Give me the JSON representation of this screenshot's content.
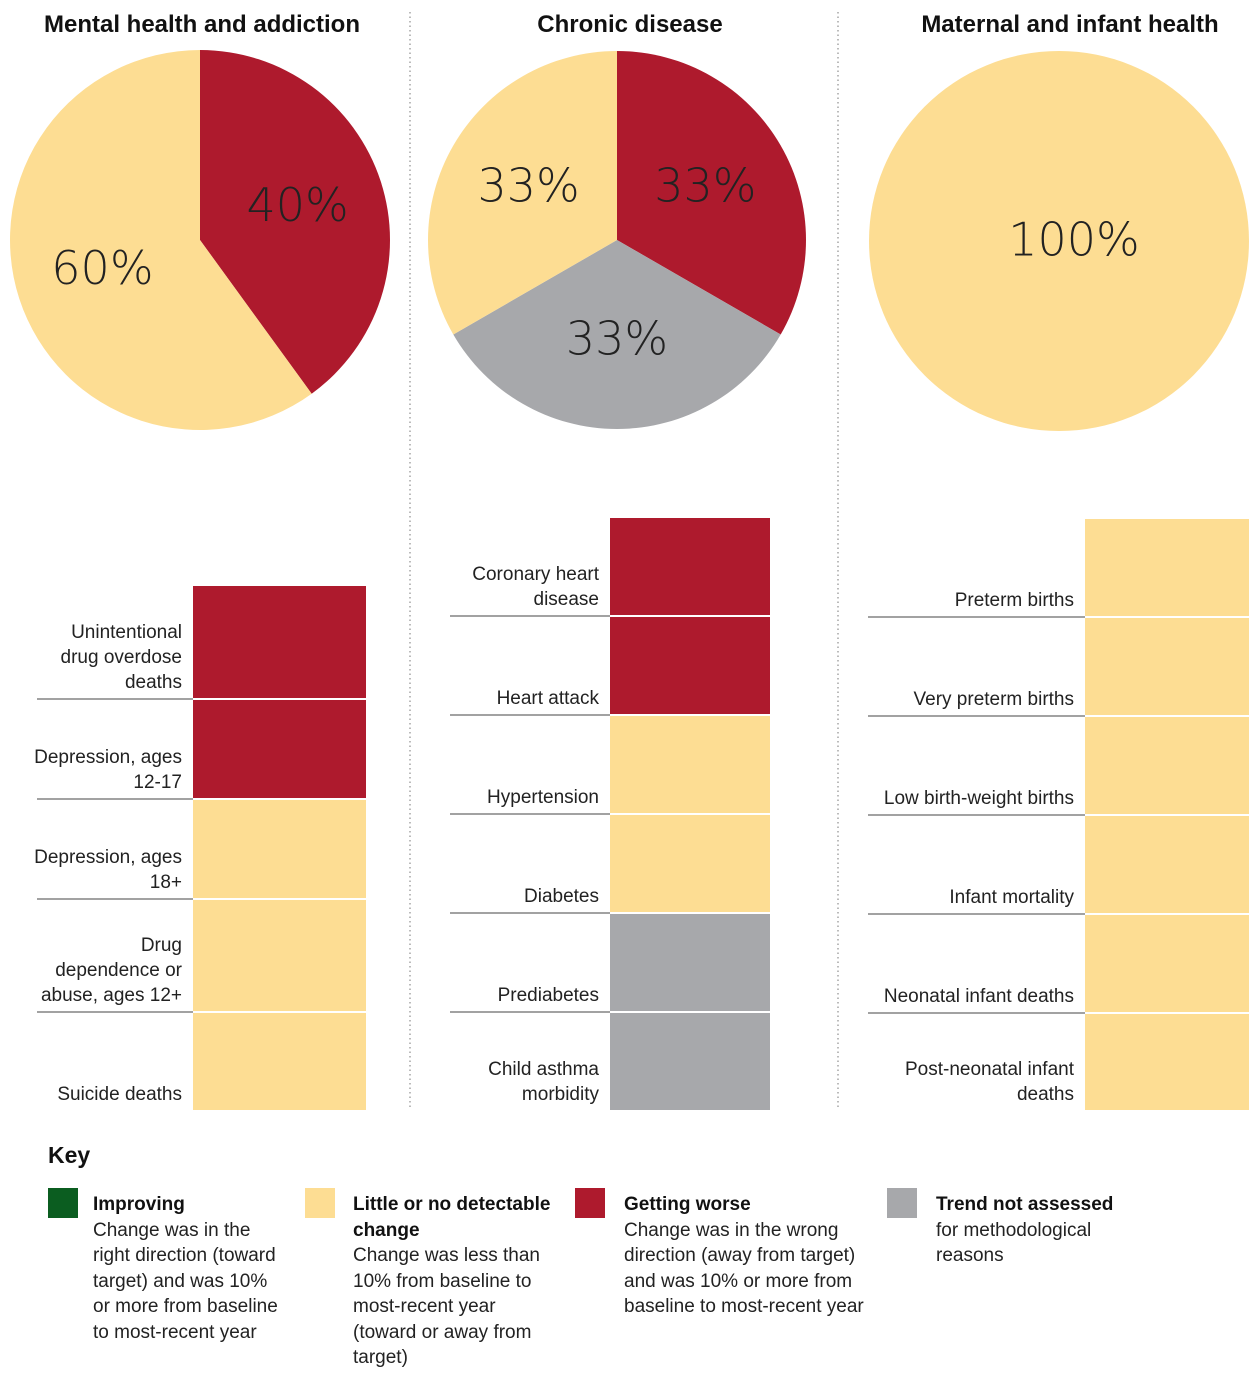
{
  "chart_data": [
    {
      "type": "pie",
      "title": "Mental health and addiction",
      "values": [
        40,
        60
      ],
      "value_labels": [
        "40%",
        "60%"
      ],
      "colors": [
        "#ae1a2d",
        "#fddd93"
      ]
    },
    {
      "type": "pie",
      "title": "Chronic disease",
      "values": [
        33,
        33,
        33
      ],
      "value_labels": [
        "33%",
        "33%",
        "33%"
      ],
      "colors": [
        "#ae1a2d",
        "#a7a8ab",
        "#fddd93"
      ]
    },
    {
      "type": "pie",
      "title": "Maternal and infant health",
      "values": [
        100
      ],
      "value_labels": [
        "100%"
      ],
      "colors": [
        "#fddd93"
      ]
    }
  ],
  "indicators": [
    {
      "items": [
        {
          "label": "Unintentional drug overdose deaths",
          "color": "#ae1a2d"
        },
        {
          "label": "Depression, ages 12-17",
          "color": "#ae1a2d"
        },
        {
          "label": "Depression, ages 18+",
          "color": "#fddd93"
        },
        {
          "label": "Drug dependence or abuse, ages 12+",
          "color": "#fddd93"
        },
        {
          "label": "Suicide deaths",
          "color": "#fddd93"
        }
      ]
    },
    {
      "items": [
        {
          "label": "Coronary heart disease",
          "color": "#ae1a2d"
        },
        {
          "label": "Heart attack",
          "color": "#ae1a2d"
        },
        {
          "label": "Hypertension",
          "color": "#fddd93"
        },
        {
          "label": "Diabetes",
          "color": "#fddd93"
        },
        {
          "label": "Prediabetes",
          "color": "#a7a8ab"
        },
        {
          "label": "Child asthma morbidity",
          "color": "#a7a8ab"
        }
      ]
    },
    {
      "items": [
        {
          "label": "Preterm births",
          "color": "#fddd93"
        },
        {
          "label": "Very preterm births",
          "color": "#fddd93"
        },
        {
          "label": "Low birth-weight births",
          "color": "#fddd93"
        },
        {
          "label": "Infant mortality",
          "color": "#fddd93"
        },
        {
          "label": "Neonatal infant deaths",
          "color": "#fddd93"
        },
        {
          "label": "Post-neonatal infant deaths",
          "color": "#fddd93"
        }
      ]
    }
  ],
  "key": {
    "title": "Key",
    "items": [
      {
        "name": "Improving",
        "description": "Change was in the right direction (toward target) and was 10% or more from baseline to most-recent year",
        "color": "#0b5d20"
      },
      {
        "name": "Little or no detectable change",
        "description": "Change was less than 10% from baseline to most-recent year (toward or away from target)",
        "color": "#fddd93"
      },
      {
        "name": "Getting worse",
        "description": "Change was in the wrong direction (away from target) and was 10% or more from baseline to most-recent year",
        "color": "#ae1a2d"
      },
      {
        "name": "Trend not assessed",
        "description": "for methodological reasons",
        "color": "#a7a8ab"
      }
    ]
  }
}
